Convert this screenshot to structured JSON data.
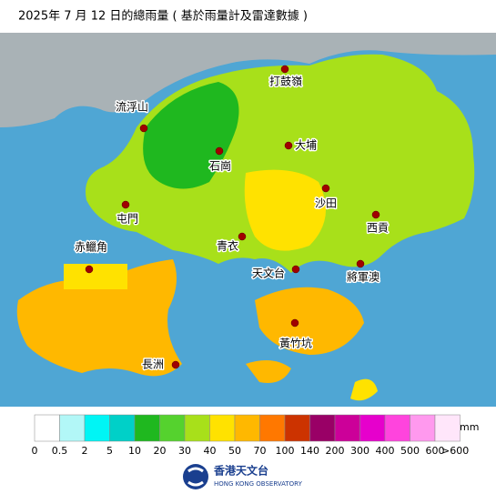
{
  "header": {
    "title": "2025年 7 月 12 日的總雨量 ( 基於雨量計及雷達數據 )"
  },
  "places": [
    {
      "label": "打鼓嶺"
    },
    {
      "label": "流浮山"
    },
    {
      "label": "石崗"
    },
    {
      "label": "大埔"
    },
    {
      "label": "沙田"
    },
    {
      "label": "屯門"
    },
    {
      "label": "西貢"
    },
    {
      "label": "青衣"
    },
    {
      "label": "赤鱲角"
    },
    {
      "label": "天文台"
    },
    {
      "label": "將軍澳"
    },
    {
      "label": "黃竹坑"
    },
    {
      "label": "長洲"
    }
  ],
  "legend": {
    "unit": "mm",
    "colors": [
      "#ffffff",
      "#b2f7f7",
      "#00f5f5",
      "#00d0c8",
      "#1fb81f",
      "#55d22e",
      "#a8e01a",
      "#ffe200",
      "#ffb800",
      "#ff7800",
      "#cc3300",
      "#990066",
      "#cc0099",
      "#e600cc",
      "#ff44dd",
      "#ff99ee",
      "#ffe6fa"
    ],
    "labels": [
      "0",
      "0.5",
      "2",
      "5",
      "10",
      "20",
      "30",
      "40",
      "50",
      "70",
      "100",
      "140",
      "200",
      "300",
      "400",
      "500",
      "600",
      ">600"
    ]
  },
  "logo": {
    "chinese": "香港天文台",
    "english": "HONG KONG OBSERVATORY"
  }
}
